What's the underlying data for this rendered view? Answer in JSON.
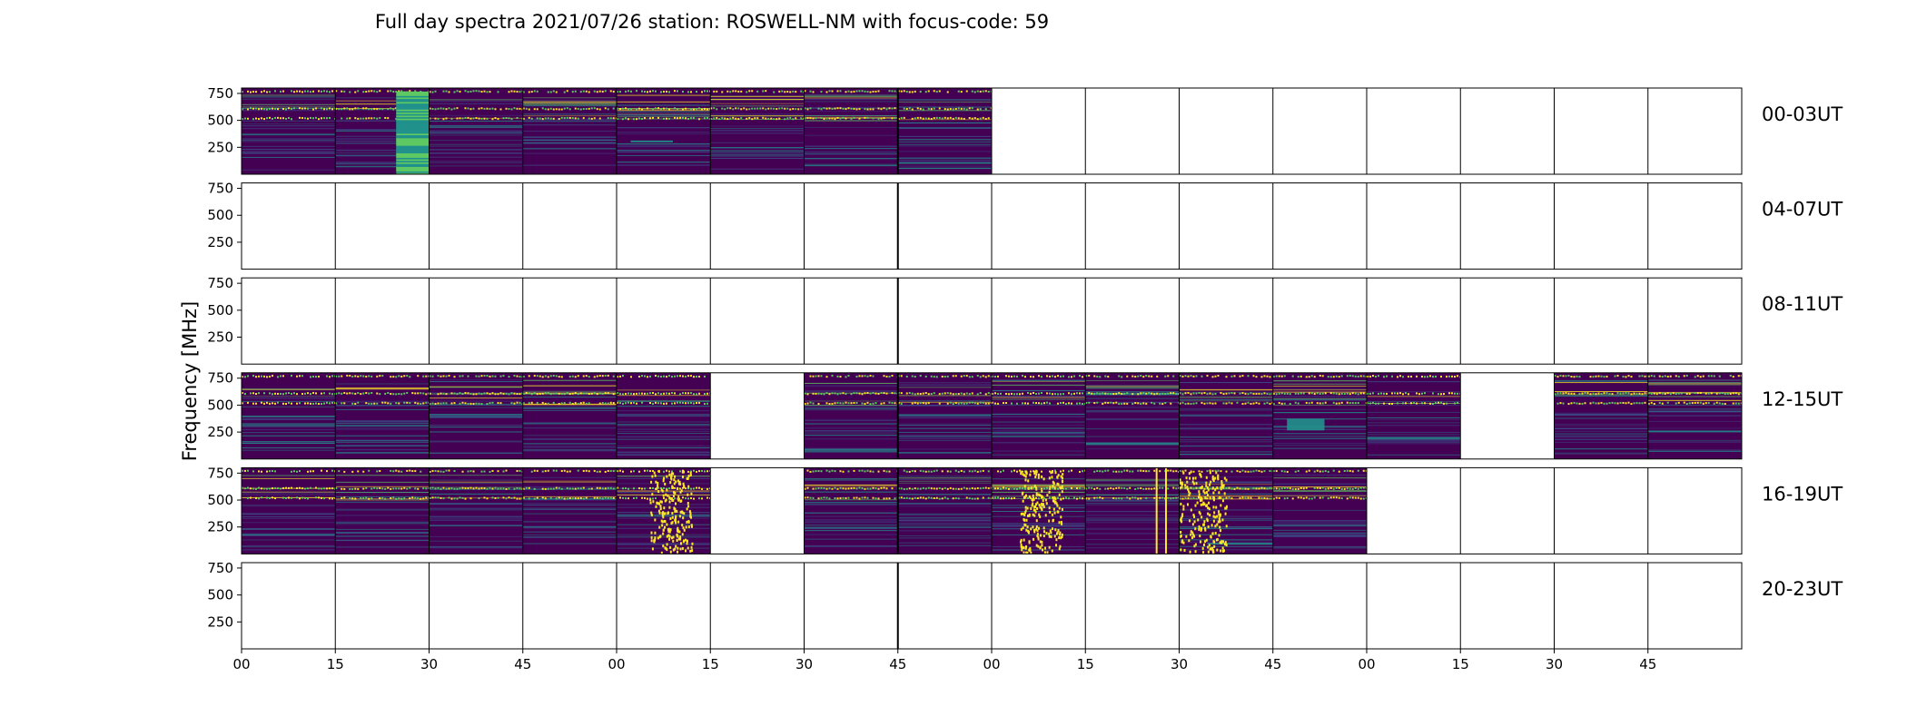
{
  "chart_data": {
    "type": "heatmap",
    "title": "Full day spectra 2021/07/26 station: ROSWELL-NM with focus-code: 59",
    "ylabel": "Frequency [MHz]",
    "xlabel": "",
    "yticks": [
      250,
      500,
      750
    ],
    "ylim": [
      0,
      800
    ],
    "xticks": [
      "00",
      "15",
      "30",
      "45",
      "00",
      "15",
      "30",
      "45",
      "00",
      "15",
      "30",
      "45",
      "00",
      "15",
      "30",
      "45"
    ],
    "colormap": [
      "#440154",
      "#3b528b",
      "#21918c",
      "#5ec962",
      "#fde725"
    ],
    "rows": [
      {
        "label": "00-03UT",
        "filled_segments": [
          0,
          1,
          2,
          3,
          4,
          5,
          6,
          7
        ],
        "bursts": [
          {
            "segment": 1,
            "start": 0.65,
            "end": 1.0,
            "type": "band"
          }
        ],
        "features": [
          {
            "segment": 4,
            "start": 0.15,
            "end": 0.6,
            "freq": 310
          }
        ]
      },
      {
        "label": "04-07UT",
        "filled_segments": [],
        "bursts": [],
        "features": []
      },
      {
        "label": "08-11UT",
        "filled_segments": [],
        "bursts": [],
        "features": []
      },
      {
        "label": "12-15UT",
        "filled_segments": [
          0,
          1,
          2,
          3,
          4,
          6,
          7,
          8,
          9,
          10,
          11,
          12,
          14,
          15
        ],
        "bursts": [],
        "features": [
          {
            "segment": 11,
            "start": 0.15,
            "end": 0.55,
            "freq": 320,
            "span": 110
          }
        ]
      },
      {
        "label": "16-19UT",
        "filled_segments": [
          0,
          1,
          2,
          3,
          4,
          6,
          7,
          8,
          9,
          10,
          11
        ],
        "bursts": [
          {
            "segment": 4,
            "start": 0.35,
            "end": 0.8,
            "type": "dots"
          },
          {
            "segment": 8,
            "start": 0.3,
            "end": 0.75,
            "type": "dots"
          },
          {
            "segment": 9,
            "start": 0.75,
            "end": 0.85,
            "type": "line"
          },
          {
            "segment": 10,
            "start": 0.0,
            "end": 0.5,
            "type": "dots"
          }
        ],
        "features": [
          {
            "segment": 10,
            "start": 0.3,
            "end": 1.0,
            "freq": 100
          }
        ]
      },
      {
        "label": "20-23UT",
        "filled_segments": [],
        "bursts": [],
        "features": []
      }
    ]
  }
}
